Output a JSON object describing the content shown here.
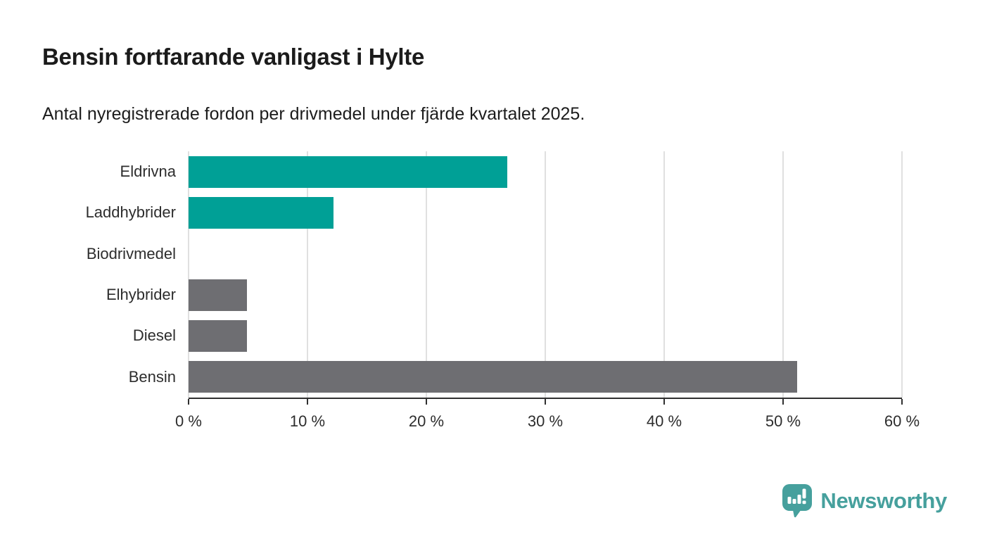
{
  "header": {
    "title": "Bensin fortfarande vanligast i Hylte",
    "subtitle": "Antal nyregistrerade fordon per drivmedel under fjärde kvartalet 2025."
  },
  "chart_data": {
    "type": "bar",
    "orientation": "horizontal",
    "title": "Bensin fortfarande vanligast i Hylte",
    "subtitle": "Antal nyregistrerade fordon per drivmedel under fjärde kvartalet 2025.",
    "categories": [
      "Eldrivna",
      "Laddhybrider",
      "Biodrivmedel",
      "Elhybrider",
      "Diesel",
      "Bensin"
    ],
    "values": [
      26.8,
      12.2,
      0,
      4.9,
      4.9,
      51.2
    ],
    "unit": "%",
    "bar_colors": [
      "#00a096",
      "#00a096",
      "#00a096",
      "#6e6e72",
      "#6e6e72",
      "#6e6e72"
    ],
    "xlabel": "",
    "ylabel": "",
    "xlim": [
      0,
      60
    ],
    "x_ticks": [
      0,
      10,
      20,
      30,
      40,
      50,
      60
    ],
    "x_tick_labels": [
      "0 %",
      "10 %",
      "20 %",
      "30 %",
      "40 %",
      "50 %",
      "60 %"
    ],
    "grid": "vertical",
    "legend": "none"
  },
  "footer": {
    "brand": "Newsworthy"
  },
  "colors": {
    "teal_bar": "#00a096",
    "gray_bar": "#6e6e72",
    "gridline": "#e0e0e0",
    "axis_line": "#303030",
    "text_dark": "#1c1c1c",
    "brand_teal": "#46a09d"
  }
}
